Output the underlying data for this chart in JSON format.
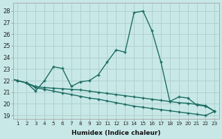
{
  "xlabel": "Humidex (Indice chaleur)",
  "background_color": "#c8e8e8",
  "grid_color": "#b0d0d0",
  "line_color": "#1a6b60",
  "xlim": [
    0.5,
    23.5
  ],
  "ylim": [
    18.7,
    28.7
  ],
  "yticks": [
    19,
    20,
    21,
    22,
    23,
    24,
    25,
    26,
    27,
    28
  ],
  "xticks": [
    1,
    2,
    3,
    4,
    5,
    6,
    7,
    8,
    9,
    10,
    11,
    12,
    13,
    14,
    15,
    16,
    17,
    18,
    19,
    20,
    21,
    22,
    23
  ],
  "xtick_labels": [
    "1",
    "2",
    "3",
    "4",
    "5",
    "6",
    "7",
    "8",
    "9",
    "10",
    "11",
    "12",
    "13",
    "14",
    "15",
    "16",
    "17",
    "18",
    "19",
    "20",
    "21",
    "22",
    "23"
  ],
  "s1_x": [
    0,
    1,
    2,
    3,
    4,
    5,
    6,
    7,
    8,
    9,
    10,
    11,
    12,
    13,
    14,
    15,
    16,
    17,
    18,
    19,
    20,
    21,
    22,
    23
  ],
  "s1_y": [
    22.2,
    22.0,
    21.8,
    21.1,
    22.0,
    23.2,
    23.05,
    21.5,
    21.9,
    22.0,
    22.5,
    23.6,
    24.65,
    24.45,
    27.85,
    28.0,
    26.3,
    23.6,
    20.2,
    20.6,
    20.5,
    19.9,
    19.8,
    19.35
  ],
  "s2_x": [
    0,
    1,
    2,
    3,
    4,
    5,
    6,
    7,
    8,
    9,
    10,
    11,
    12,
    13,
    14,
    15,
    16,
    17,
    18,
    19,
    20,
    21,
    22,
    23
  ],
  "s2_y": [
    22.2,
    22.0,
    21.8,
    21.5,
    21.4,
    21.35,
    21.3,
    21.25,
    21.2,
    21.1,
    21.0,
    20.9,
    20.8,
    20.7,
    20.6,
    20.5,
    20.4,
    20.3,
    20.2,
    20.1,
    20.05,
    19.95,
    19.85,
    19.35
  ],
  "s3_x": [
    0,
    1,
    2,
    3,
    4,
    5,
    6,
    7,
    8,
    9,
    10,
    11,
    12,
    13,
    14,
    15,
    16,
    17,
    18,
    19,
    20,
    21,
    22,
    23
  ],
  "s3_y": [
    22.2,
    22.0,
    21.8,
    21.4,
    21.25,
    21.1,
    20.95,
    20.8,
    20.65,
    20.5,
    20.4,
    20.25,
    20.1,
    19.95,
    19.8,
    19.7,
    19.6,
    19.5,
    19.4,
    19.3,
    19.2,
    19.1,
    19.0,
    19.35
  ],
  "marker_size": 3.5,
  "line_width": 1.0,
  "figsize": [
    3.2,
    2.0
  ],
  "dpi": 100
}
